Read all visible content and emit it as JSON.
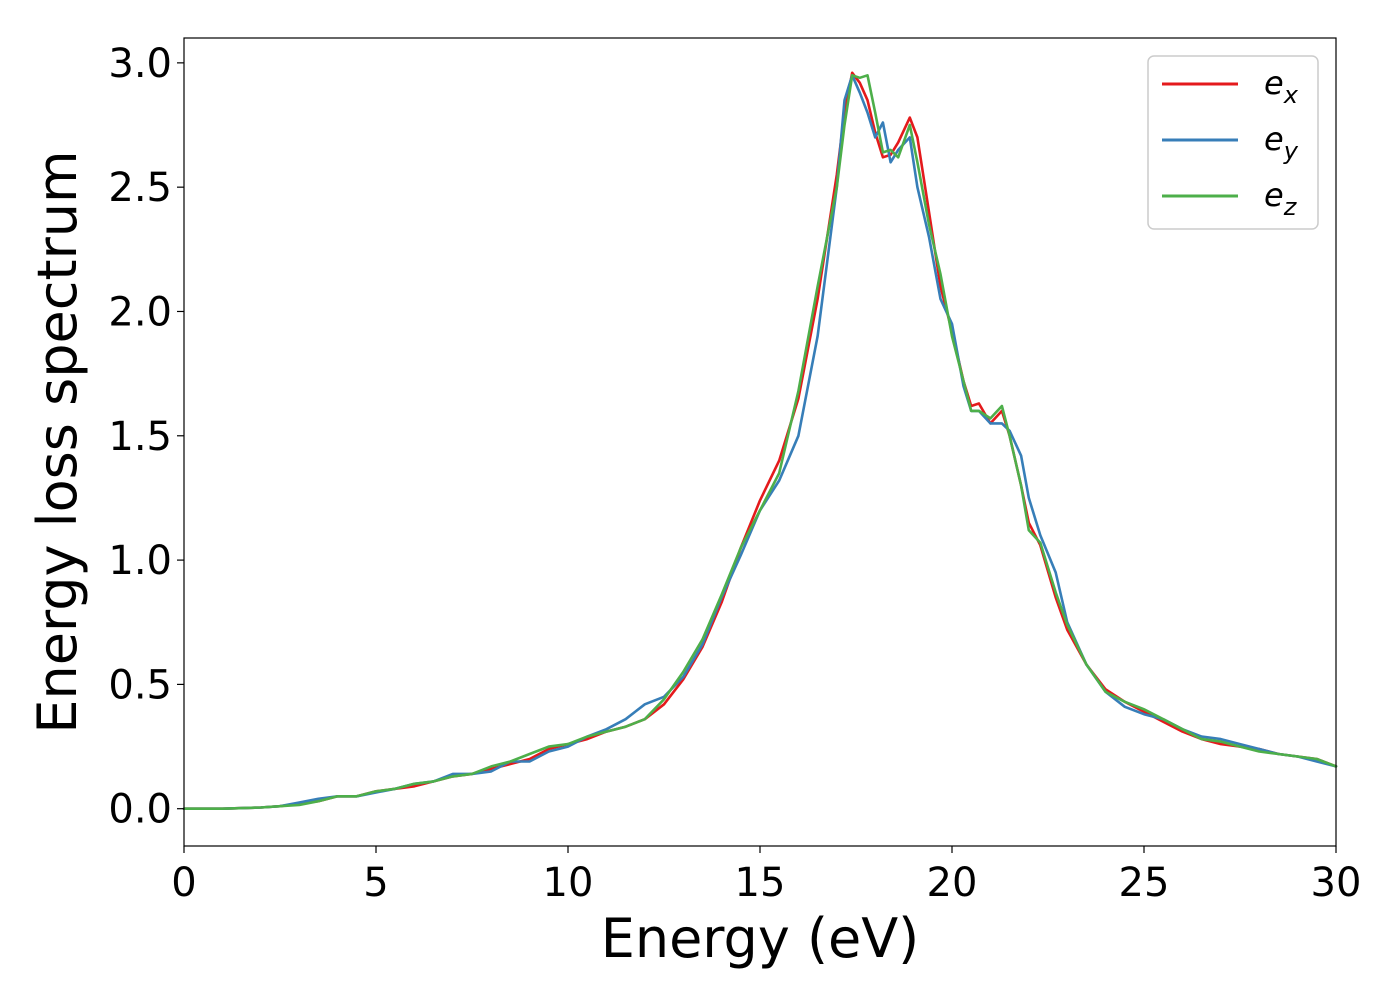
{
  "chart_data": {
    "type": "line",
    "xlabel": "Energy (eV)",
    "ylabel": "Energy loss spectrum",
    "xlim": [
      0,
      30
    ],
    "ylim": [
      -0.15,
      3.1
    ],
    "x_ticks": [
      "0",
      "5",
      "10",
      "15",
      "20",
      "25",
      "30"
    ],
    "y_ticks": [
      "0.0",
      "0.5",
      "1.0",
      "1.5",
      "2.0",
      "2.5",
      "3.0"
    ],
    "grid": false,
    "legend_placement": "top-right",
    "series": [
      {
        "name": "e_x",
        "label_base": "e",
        "label_sub": "x",
        "color": "#e41a1c",
        "x": [
          0,
          1,
          2,
          2.5,
          3,
          3.5,
          4,
          4.5,
          5,
          5.5,
          6,
          6.5,
          7,
          7.5,
          8,
          8.5,
          9,
          9.5,
          10,
          10.5,
          11,
          11.5,
          12,
          12.5,
          13,
          13.5,
          14,
          14.5,
          15,
          15.5,
          16,
          16.5,
          17,
          17.2,
          17.4,
          17.6,
          17.8,
          18,
          18.2,
          18.4,
          18.6,
          18.9,
          19.1,
          19.4,
          19.7,
          20,
          20.3,
          20.5,
          20.7,
          21,
          21.3,
          21.5,
          21.8,
          22,
          22.3,
          22.7,
          23,
          23.5,
          24,
          24.5,
          25,
          25.5,
          26,
          26.5,
          27,
          27.5,
          28,
          28.5,
          29,
          29.5,
          30
        ],
        "y": [
          0.0,
          0.0,
          0.005,
          0.01,
          0.02,
          0.03,
          0.05,
          0.05,
          0.07,
          0.08,
          0.09,
          0.11,
          0.13,
          0.14,
          0.16,
          0.18,
          0.2,
          0.24,
          0.26,
          0.28,
          0.31,
          0.33,
          0.36,
          0.42,
          0.52,
          0.65,
          0.83,
          1.05,
          1.24,
          1.4,
          1.65,
          2.05,
          2.55,
          2.8,
          2.96,
          2.92,
          2.85,
          2.72,
          2.62,
          2.63,
          2.68,
          2.78,
          2.7,
          2.4,
          2.1,
          1.92,
          1.72,
          1.62,
          1.63,
          1.55,
          1.6,
          1.5,
          1.3,
          1.15,
          1.06,
          0.85,
          0.72,
          0.58,
          0.48,
          0.43,
          0.39,
          0.35,
          0.31,
          0.28,
          0.26,
          0.25,
          0.24,
          0.22,
          0.21,
          0.2,
          0.17
        ]
      },
      {
        "name": "e_y",
        "label_base": "e",
        "label_sub": "y",
        "color": "#377eb8",
        "x": [
          0,
          1,
          2,
          2.5,
          3,
          3.5,
          4,
          4.5,
          5,
          5.5,
          6,
          6.5,
          7,
          7.5,
          8,
          8.5,
          9,
          9.5,
          10,
          10.5,
          11,
          11.5,
          12,
          12.5,
          13,
          13.5,
          14,
          14.5,
          15,
          15.5,
          16,
          16.5,
          17,
          17.2,
          17.4,
          17.6,
          17.8,
          18,
          18.2,
          18.4,
          18.6,
          18.9,
          19.1,
          19.4,
          19.7,
          20,
          20.3,
          20.5,
          20.7,
          21,
          21.3,
          21.5,
          21.8,
          22,
          22.3,
          22.7,
          23,
          23.5,
          24,
          24.5,
          25,
          25.5,
          26,
          26.5,
          27,
          27.5,
          28,
          28.5,
          29,
          29.5,
          30
        ],
        "y": [
          0.0,
          0.0,
          0.005,
          0.01,
          0.025,
          0.04,
          0.05,
          0.05,
          0.065,
          0.08,
          0.1,
          0.11,
          0.14,
          0.14,
          0.15,
          0.19,
          0.19,
          0.23,
          0.25,
          0.29,
          0.32,
          0.36,
          0.42,
          0.45,
          0.53,
          0.66,
          0.85,
          1.02,
          1.2,
          1.32,
          1.5,
          1.9,
          2.5,
          2.85,
          2.95,
          2.88,
          2.8,
          2.7,
          2.76,
          2.6,
          2.65,
          2.7,
          2.5,
          2.3,
          2.05,
          1.95,
          1.7,
          1.6,
          1.6,
          1.55,
          1.55,
          1.52,
          1.42,
          1.25,
          1.1,
          0.95,
          0.75,
          0.58,
          0.47,
          0.41,
          0.38,
          0.36,
          0.32,
          0.29,
          0.28,
          0.26,
          0.24,
          0.22,
          0.21,
          0.19,
          0.17
        ]
      },
      {
        "name": "e_z",
        "label_base": "e",
        "label_sub": "z",
        "color": "#4daf4a",
        "x": [
          0,
          1,
          2,
          2.5,
          3,
          3.5,
          4,
          4.5,
          5,
          5.5,
          6,
          6.5,
          7,
          7.5,
          8,
          8.5,
          9,
          9.5,
          10,
          10.5,
          11,
          11.5,
          12,
          12.5,
          13,
          13.5,
          14,
          14.5,
          15,
          15.5,
          16,
          16.5,
          17,
          17.2,
          17.4,
          17.6,
          17.8,
          18,
          18.2,
          18.4,
          18.6,
          18.9,
          19.1,
          19.4,
          19.7,
          20,
          20.3,
          20.5,
          20.7,
          21,
          21.3,
          21.5,
          21.8,
          22,
          22.3,
          22.7,
          23,
          23.5,
          24,
          24.5,
          25,
          25.5,
          26,
          26.5,
          27,
          27.5,
          28,
          28.5,
          29,
          29.5,
          30
        ],
        "y": [
          0.0,
          0.0,
          0.005,
          0.01,
          0.015,
          0.03,
          0.05,
          0.05,
          0.07,
          0.08,
          0.1,
          0.11,
          0.13,
          0.14,
          0.17,
          0.19,
          0.22,
          0.25,
          0.26,
          0.29,
          0.31,
          0.33,
          0.36,
          0.44,
          0.55,
          0.68,
          0.86,
          1.05,
          1.2,
          1.35,
          1.68,
          2.1,
          2.5,
          2.75,
          2.95,
          2.94,
          2.95,
          2.8,
          2.64,
          2.65,
          2.62,
          2.75,
          2.6,
          2.35,
          2.15,
          1.9,
          1.72,
          1.6,
          1.6,
          1.57,
          1.62,
          1.5,
          1.3,
          1.12,
          1.07,
          0.87,
          0.74,
          0.58,
          0.47,
          0.43,
          0.4,
          0.36,
          0.32,
          0.28,
          0.27,
          0.25,
          0.23,
          0.22,
          0.21,
          0.2,
          0.17
        ]
      }
    ]
  }
}
